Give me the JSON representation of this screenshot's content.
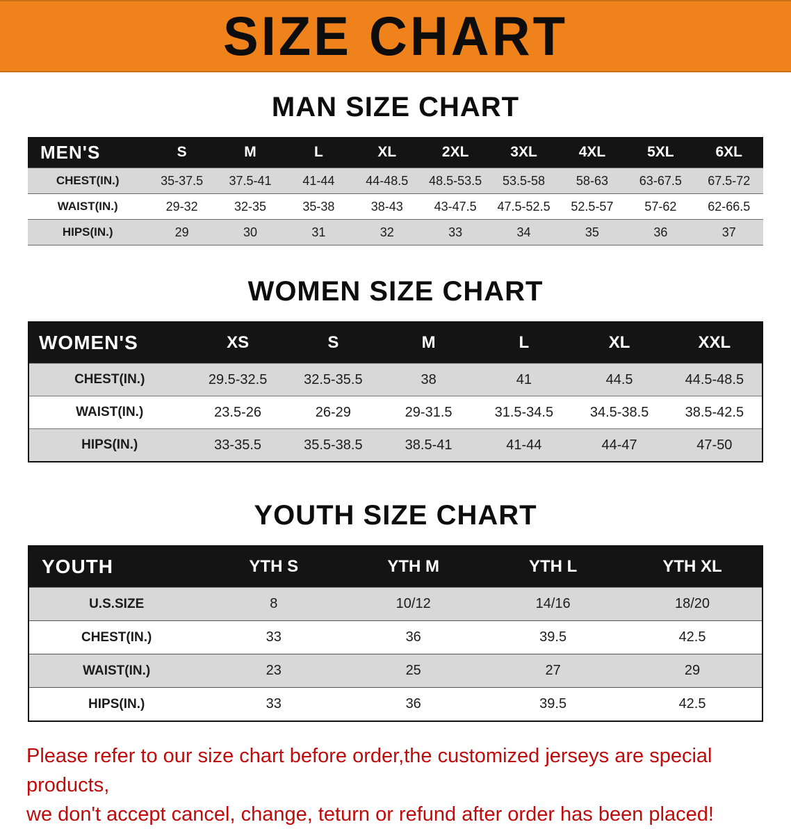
{
  "banner": {
    "title": "SIZE CHART"
  },
  "colors": {
    "banner_orange": "#f0821b",
    "table_header_black": "#141414",
    "row_stripe_gray": "#d8d8d8",
    "disclaimer_red": "#bf0b0b"
  },
  "sections": [
    {
      "heading": "MAN SIZE CHART",
      "label": "MEN'S",
      "columns": [
        "S",
        "M",
        "L",
        "XL",
        "2XL",
        "3XL",
        "4XL",
        "5XL",
        "6XL"
      ],
      "rows": [
        {
          "label": "CHEST(IN.)",
          "values": [
            "35-37.5",
            "37.5-41",
            "41-44",
            "44-48.5",
            "48.5-53.5",
            "53.5-58",
            "58-63",
            "63-67.5",
            "67.5-72"
          ]
        },
        {
          "label": "WAIST(IN.)",
          "values": [
            "29-32",
            "32-35",
            "35-38",
            "38-43",
            "43-47.5",
            "47.5-52.5",
            "52.5-57",
            "57-62",
            "62-66.5"
          ]
        },
        {
          "label": "HIPS(IN.)",
          "values": [
            "29",
            "30",
            "31",
            "32",
            "33",
            "34",
            "35",
            "36",
            "37"
          ]
        }
      ]
    },
    {
      "heading": "WOMEN SIZE CHART",
      "label": "WOMEN'S",
      "columns": [
        "XS",
        "S",
        "M",
        "L",
        "XL",
        "XXL"
      ],
      "rows": [
        {
          "label": "CHEST(IN.)",
          "values": [
            "29.5-32.5",
            "32.5-35.5",
            "38",
            "41",
            "44.5",
            "44.5-48.5"
          ]
        },
        {
          "label": "WAIST(IN.)",
          "values": [
            "23.5-26",
            "26-29",
            "29-31.5",
            "31.5-34.5",
            "34.5-38.5",
            "38.5-42.5"
          ]
        },
        {
          "label": "HIPS(IN.)",
          "values": [
            "33-35.5",
            "35.5-38.5",
            "38.5-41",
            "41-44",
            "44-47",
            "47-50"
          ]
        }
      ]
    },
    {
      "heading": "YOUTH SIZE CHART",
      "label": "YOUTH",
      "columns": [
        "YTH S",
        "YTH M",
        "YTH L",
        "YTH XL"
      ],
      "rows": [
        {
          "label": "U.S.SIZE",
          "values": [
            "8",
            "10/12",
            "14/16",
            "18/20"
          ]
        },
        {
          "label": "CHEST(IN.)",
          "values": [
            "33",
            "36",
            "39.5",
            "42.5"
          ]
        },
        {
          "label": "WAIST(IN.)",
          "values": [
            "23",
            "25",
            "27",
            "29"
          ]
        },
        {
          "label": "HIPS(IN.)",
          "values": [
            "33",
            "36",
            "39.5",
            "42.5"
          ]
        }
      ]
    }
  ],
  "disclaimer": {
    "line1": "Please refer to our size chart before order,the customized jerseys are special products,",
    "line2": "we don't accept cancel, change, teturn or refund after order has been placed!"
  }
}
